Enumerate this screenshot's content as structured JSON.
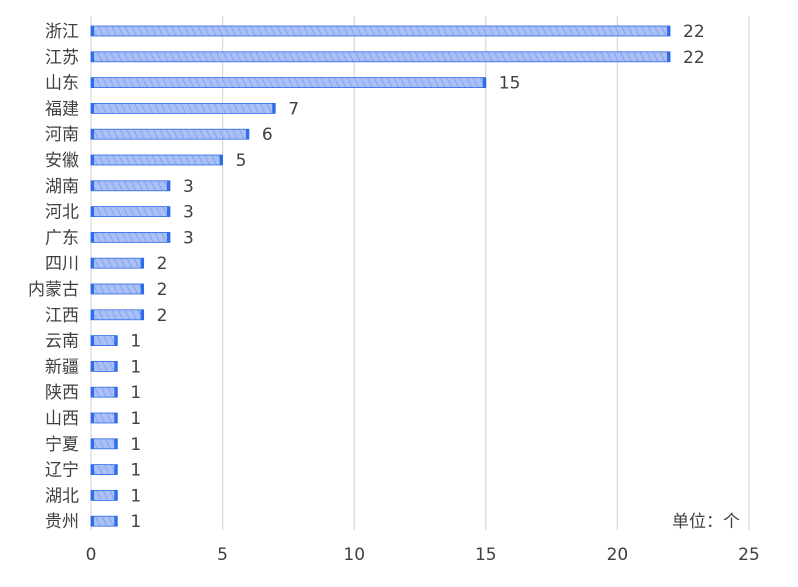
{
  "chart_data": {
    "type": "bar",
    "orientation": "horizontal",
    "categories": [
      "浙江",
      "江苏",
      "山东",
      "福建",
      "河南",
      "安徽",
      "湖南",
      "河北",
      "广东",
      "四川",
      "内蒙古",
      "江西",
      "云南",
      "新疆",
      "陕西",
      "山西",
      "宁夏",
      "辽宁",
      "湖北",
      "贵州"
    ],
    "values": [
      22,
      22,
      15,
      7,
      6,
      5,
      3,
      3,
      3,
      2,
      2,
      2,
      1,
      1,
      1,
      1,
      1,
      1,
      1,
      1
    ],
    "xlim": [
      0,
      25
    ],
    "xticks": [
      0,
      5,
      10,
      15,
      20,
      25
    ],
    "grid": true,
    "unit_label": "单位：个",
    "colors": {
      "bar_fill": "#9db5f3",
      "bar_stroke": "#2f6bea",
      "hatch": "#3a6fe8",
      "grid": "#d0d0d0",
      "text": "#404040"
    }
  }
}
